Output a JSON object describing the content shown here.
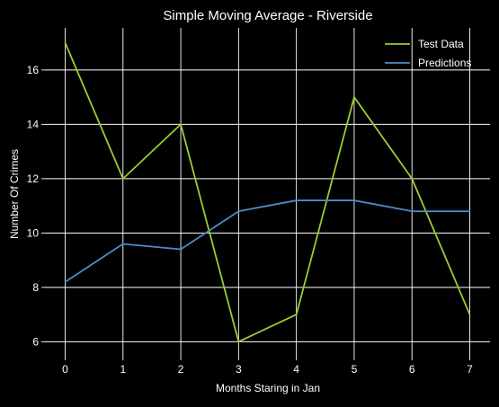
{
  "chart_data": {
    "type": "line",
    "title": "Simple Moving Average - Riverside",
    "xlabel": "Months Staring in Jan",
    "ylabel": "Number Of Crimes",
    "x": [
      0,
      1,
      2,
      3,
      4,
      5,
      6,
      7
    ],
    "xticks": [
      0,
      1,
      2,
      3,
      4,
      5,
      6,
      7
    ],
    "yticks": [
      6,
      8,
      10,
      12,
      14,
      16
    ],
    "xlim": [
      -0.35,
      7.35
    ],
    "ylim": [
      5.45,
      17.55
    ],
    "grid": true,
    "legend_position": "top-right",
    "background": "#000000",
    "grid_color": "#ffffff",
    "series": [
      {
        "name": "Test Data",
        "color": "#9acd32",
        "values": [
          17,
          12,
          14,
          6,
          7,
          15,
          12,
          7
        ]
      },
      {
        "name": "Predictions",
        "color": "#4f8bc4",
        "values": [
          8.2,
          9.6,
          9.4,
          10.8,
          11.2,
          11.2,
          10.8,
          10.8
        ]
      }
    ]
  }
}
